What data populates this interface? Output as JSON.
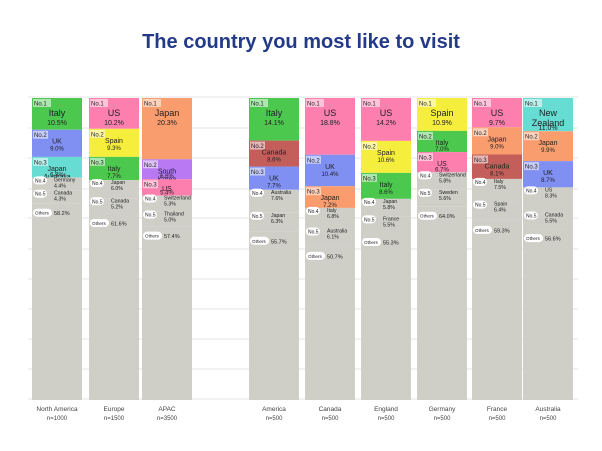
{
  "title": "The country you most like to visit",
  "colors": {
    "title": "#233a88",
    "others": "#cfcfc8",
    "rank_label_bg": "#ffffff",
    "grid": "#e6e6e6"
  },
  "chart_data": {
    "type": "bar",
    "stacked": true,
    "percent_scale": true,
    "ylim": [
      0,
      100
    ],
    "grid": true,
    "categories": [
      {
        "name": "North America",
        "n": "n=1000",
        "segments": [
          {
            "rank": "No.1",
            "country": "Italy",
            "value_label": "10.5%",
            "value": 10.5,
            "color": "#4cc84f"
          },
          {
            "rank": "No.2",
            "country": "UK",
            "value_label": "9.0%",
            "value": 9.0,
            "color": "#7f8ff2"
          },
          {
            "rank": "No.3",
            "country": "Japan\nAustralia",
            "value_label": "6.8%",
            "value": 6.8,
            "color": "#66dcd2"
          },
          {
            "rank": "No.4",
            "country": "Germany",
            "value_label": "4.4%",
            "value": 4.4,
            "color": "#cfcfc8"
          },
          {
            "rank": "No.5",
            "country": "Canada",
            "value_label": "4.3%",
            "value": 4.3,
            "color": "#cfcfc8"
          },
          {
            "rank": "Others",
            "country": "",
            "value_label": "58.2%",
            "value": 58.2,
            "color": "#cfcfc8"
          }
        ]
      },
      {
        "name": "Europe",
        "n": "n=1500",
        "segments": [
          {
            "rank": "No.1",
            "country": "US",
            "value_label": "10.2%",
            "value": 10.2,
            "color": "#fd7fae"
          },
          {
            "rank": "No.2",
            "country": "Spain",
            "value_label": "9.3%",
            "value": 9.3,
            "color": "#f6ee3c"
          },
          {
            "rank": "No.3",
            "country": "Italy",
            "value_label": "7.7%",
            "value": 7.7,
            "color": "#4cc84f"
          },
          {
            "rank": "No.4",
            "country": "Japan",
            "value_label": "6.0%",
            "value": 6.0,
            "color": "#cfcfc8"
          },
          {
            "rank": "No.5",
            "country": "Canada",
            "value_label": "5.2%",
            "value": 5.2,
            "color": "#cfcfc8"
          },
          {
            "rank": "Others",
            "country": "",
            "value_label": "61.6%",
            "value": 61.6,
            "color": "#cfcfc8"
          }
        ]
      },
      {
        "name": "APAC",
        "n": "n=3500",
        "segments": [
          {
            "rank": "No.1",
            "country": "Japan",
            "value_label": "20.3%",
            "value": 20.3,
            "color": "#f99c6e"
          },
          {
            "rank": "No.2",
            "country": "South\nKorea",
            "value_label": "6.6%",
            "value": 6.6,
            "color": "#b879f2"
          },
          {
            "rank": "No.3",
            "country": "US",
            "value_label": "5.4%",
            "value": 5.4,
            "color": "#fd7fae"
          },
          {
            "rank": "No.4",
            "country": "Switzerland",
            "value_label": "5.3%",
            "value": 5.3,
            "color": "#cfcfc8"
          },
          {
            "rank": "No.5",
            "country": "Thailand",
            "value_label": "5.0%",
            "value": 5.0,
            "color": "#cfcfc8"
          },
          {
            "rank": "Others",
            "country": "",
            "value_label": "57.4%",
            "value": 57.4,
            "color": "#cfcfc8"
          }
        ]
      },
      {
        "name": "America",
        "n": "n=500",
        "segments": [
          {
            "rank": "No.1",
            "country": "Italy",
            "value_label": "14.1%",
            "value": 14.1,
            "color": "#4cc84f"
          },
          {
            "rank": "No.2",
            "country": "Canada",
            "value_label": "8.6%",
            "value": 8.6,
            "color": "#c45e5b"
          },
          {
            "rank": "No.3",
            "country": "UK",
            "value_label": "7.7%",
            "value": 7.7,
            "color": "#7f8ff2"
          },
          {
            "rank": "No.4",
            "country": "Australia",
            "value_label": "7.6%",
            "value": 7.6,
            "color": "#cfcfc8"
          },
          {
            "rank": "No.5",
            "country": "Japan",
            "value_label": "6.3%",
            "value": 6.3,
            "color": "#cfcfc8"
          },
          {
            "rank": "Others",
            "country": "",
            "value_label": "55.7%",
            "value": 55.7,
            "color": "#cfcfc8"
          }
        ]
      },
      {
        "name": "Canada",
        "n": "n=500",
        "segments": [
          {
            "rank": "No.1",
            "country": "US",
            "value_label": "18.8%",
            "value": 18.8,
            "color": "#fd7fae"
          },
          {
            "rank": "No.2",
            "country": "UK",
            "value_label": "10.4%",
            "value": 10.4,
            "color": "#7f8ff2"
          },
          {
            "rank": "No.3",
            "country": "Japan",
            "value_label": "7.2%",
            "value": 7.2,
            "color": "#f99c6e"
          },
          {
            "rank": "No.4",
            "country": "Italy",
            "value_label": "6.8%",
            "value": 6.8,
            "color": "#cfcfc8"
          },
          {
            "rank": "No.5",
            "country": "Australia",
            "value_label": "6.1%",
            "value": 6.1,
            "color": "#cfcfc8"
          },
          {
            "rank": "Others",
            "country": "",
            "value_label": "50.7%",
            "value": 50.7,
            "color": "#cfcfc8"
          }
        ]
      },
      {
        "name": "England",
        "n": "n=500",
        "segments": [
          {
            "rank": "No.1",
            "country": "US",
            "value_label": "14.2%",
            "value": 14.2,
            "color": "#fd7fae"
          },
          {
            "rank": "No.2",
            "country": "Spain",
            "value_label": "10.6%",
            "value": 10.6,
            "color": "#f6ee3c"
          },
          {
            "rank": "No.3",
            "country": "Italy",
            "value_label": "8.6%",
            "value": 8.6,
            "color": "#4cc84f"
          },
          {
            "rank": "No.4",
            "country": "Japan",
            "value_label": "5.8%",
            "value": 5.8,
            "color": "#cfcfc8"
          },
          {
            "rank": "No.5",
            "country": "France",
            "value_label": "5.5%",
            "value": 5.5,
            "color": "#cfcfc8"
          },
          {
            "rank": "Others",
            "country": "",
            "value_label": "55.3%",
            "value": 55.3,
            "color": "#cfcfc8"
          }
        ]
      },
      {
        "name": "Germany",
        "n": "n=500",
        "segments": [
          {
            "rank": "No.1",
            "country": "Spain",
            "value_label": "10.9%",
            "value": 10.9,
            "color": "#f6ee3c"
          },
          {
            "rank": "No.2",
            "country": "Italy",
            "value_label": "7.0%",
            "value": 7.0,
            "color": "#4cc84f"
          },
          {
            "rank": "No.3",
            "country": "US",
            "value_label": "6.7%",
            "value": 6.7,
            "color": "#fd7fae"
          },
          {
            "rank": "No.4",
            "country": "Switzerland",
            "value_label": "5.8%",
            "value": 5.8,
            "color": "#cfcfc8"
          },
          {
            "rank": "No.5",
            "country": "Sweden",
            "value_label": "5.6%",
            "value": 5.6,
            "color": "#cfcfc8"
          },
          {
            "rank": "Others",
            "country": "",
            "value_label": "64.0%",
            "value": 64.0,
            "color": "#cfcfc8"
          }
        ]
      },
      {
        "name": "France",
        "n": "n=500",
        "segments": [
          {
            "rank": "No.1",
            "country": "US",
            "value_label": "9.7%",
            "value": 9.7,
            "color": "#fd7fae"
          },
          {
            "rank": "No.2",
            "country": "Japan",
            "value_label": "9.0%",
            "value": 9.0,
            "color": "#f99c6e"
          },
          {
            "rank": "No.3",
            "country": "Canada",
            "value_label": "8.1%",
            "value": 8.1,
            "color": "#c45e5b"
          },
          {
            "rank": "No.4",
            "country": "Italy",
            "value_label": "7.5%",
            "value": 7.5,
            "color": "#cfcfc8"
          },
          {
            "rank": "No.5",
            "country": "Spain",
            "value_label": "6.4%",
            "value": 6.4,
            "color": "#cfcfc8"
          },
          {
            "rank": "Others",
            "country": "",
            "value_label": "59.3%",
            "value": 59.3,
            "color": "#cfcfc8"
          }
        ]
      },
      {
        "name": "Australia",
        "n": "n=500",
        "segments": [
          {
            "rank": "No.1",
            "country": "New\nZealand",
            "value_label": "11.0%",
            "value": 11.0,
            "color": "#66dcd2"
          },
          {
            "rank": "No.2",
            "country": "Japan",
            "value_label": "9.9%",
            "value": 9.9,
            "color": "#f99c6e"
          },
          {
            "rank": "No.3",
            "country": "UK",
            "value_label": "8.7%",
            "value": 8.7,
            "color": "#7f8ff2"
          },
          {
            "rank": "No.4",
            "country": "US",
            "value_label": "8.3%",
            "value": 8.3,
            "color": "#cfcfc8"
          },
          {
            "rank": "No.5",
            "country": "Canada",
            "value_label": "5.5%",
            "value": 5.5,
            "color": "#cfcfc8"
          },
          {
            "rank": "Others",
            "country": "",
            "value_label": "56.6%",
            "value": 56.6,
            "color": "#cfcfc8"
          }
        ]
      }
    ]
  }
}
